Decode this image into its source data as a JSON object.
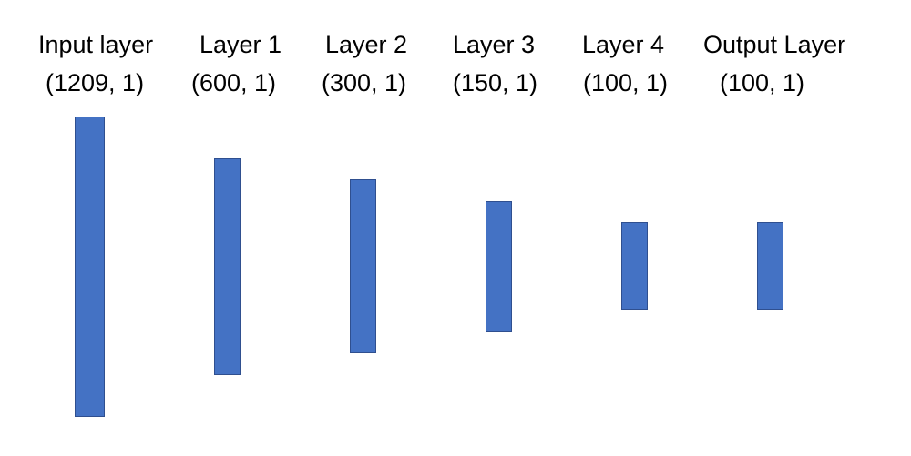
{
  "diagram": {
    "bar_color": "#4472C4",
    "bar_border_color": "#2F4F8F",
    "layers": [
      {
        "name": "Input layer",
        "shape": "(1209, 1)"
      },
      {
        "name": "Layer 1",
        "shape": "(600, 1)"
      },
      {
        "name": "Layer 2",
        "shape": "(300, 1)"
      },
      {
        "name": "Layer 3",
        "shape": "(150, 1)"
      },
      {
        "name": "Layer 4",
        "shape": "(100, 1)"
      },
      {
        "name": "Output Layer",
        "shape": "(100, 1)"
      }
    ]
  }
}
